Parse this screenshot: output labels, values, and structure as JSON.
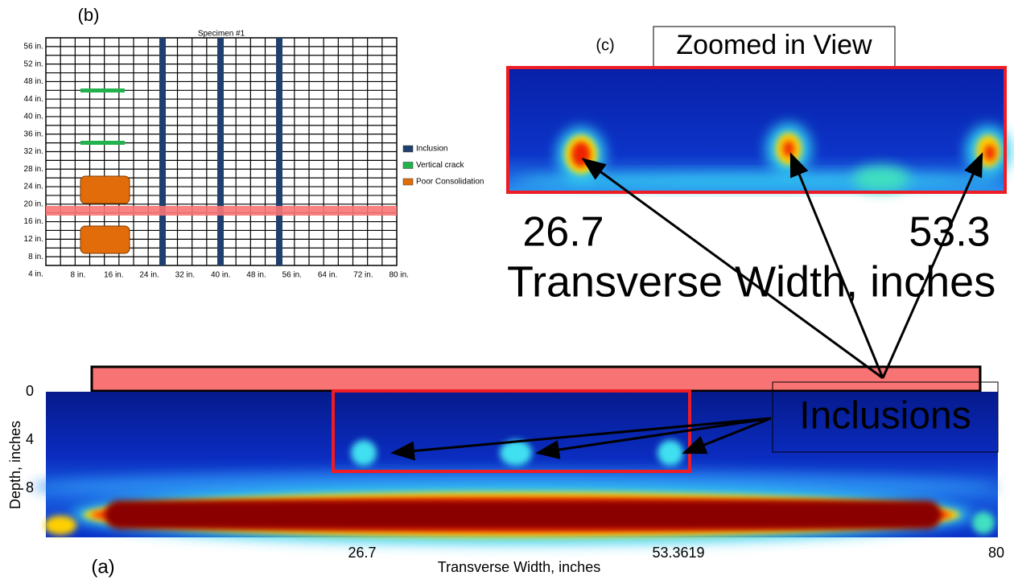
{
  "panel_b": {
    "label": "(b)",
    "title": "Specimen #1",
    "y_labels": [
      "56 in.",
      "52 in.",
      "48 in.",
      "44 in.",
      "40 in.",
      "36 in.",
      "32 in.",
      "28 in.",
      "24 in.",
      "20 in.",
      "16 in.",
      "12 in.",
      "8 in.",
      "4 in."
    ],
    "x_labels": [
      "8 in.",
      "16 in.",
      "24 in.",
      "32 in.",
      "40 in.",
      "48 in.",
      "56 in.",
      "64 in.",
      "72 in.",
      "80 in."
    ],
    "legend": [
      {
        "name": "Inclusion",
        "color": "#1f3f6e"
      },
      {
        "name": "Vertical crack",
        "color": "#22b14c"
      },
      {
        "name": "Poor Consolidation",
        "color": "#e36c0a"
      }
    ]
  },
  "panel_c": {
    "label": "(c)",
    "title": "Zoomed in View",
    "x_ticks": [
      "26.7",
      "53.3"
    ],
    "x_label": "Transverse Width, inches"
  },
  "panel_a": {
    "label": "(a)",
    "y_label": "Depth, inches",
    "y_ticks": [
      "0",
      "4",
      "8"
    ],
    "x_ticks": [
      "26.7",
      "53.3619",
      "80"
    ],
    "x_label": "Transverse Width, inches",
    "annotation": "Inclusions"
  }
}
